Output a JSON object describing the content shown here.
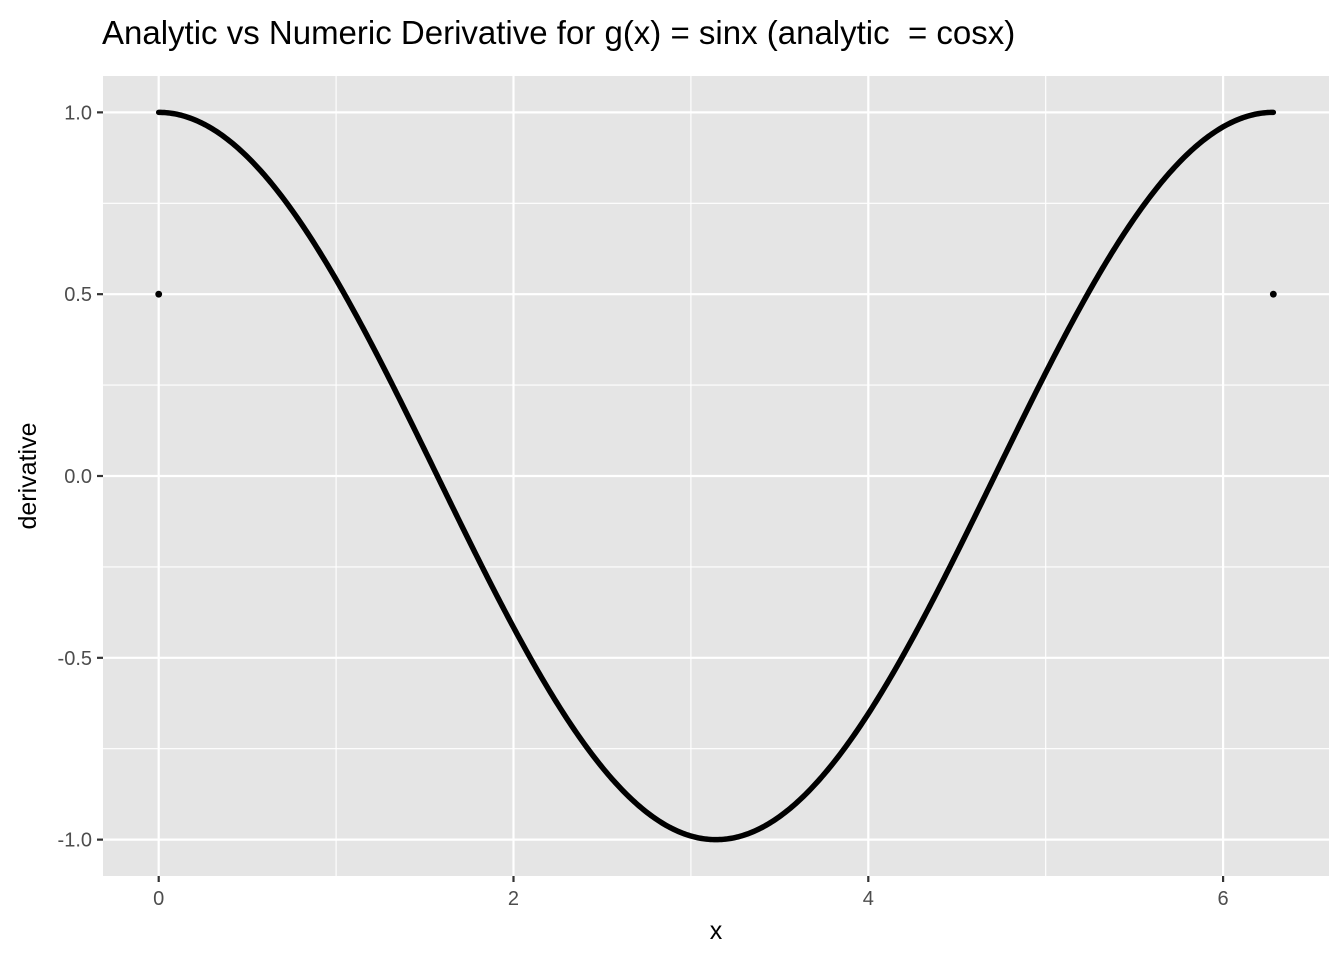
{
  "chart_data": {
    "type": "line",
    "title": "Analytic vs Numeric Derivative for g(x) = sinx (analytic  = cosx)",
    "xlabel": "x",
    "ylabel": "derivative",
    "xlim": [
      -0.314,
      6.597
    ],
    "ylim": [
      -1.1,
      1.1
    ],
    "x_ticks": [
      0,
      2,
      4,
      6
    ],
    "x_tick_labels": [
      "0",
      "2",
      "4",
      "6"
    ],
    "y_ticks": [
      -1.0,
      -0.5,
      0.0,
      0.5,
      1.0
    ],
    "y_tick_labels": [
      "-1.0",
      "-0.5",
      "0.0",
      "0.5",
      "1.0"
    ],
    "grid": true,
    "background": "#e5e5e5",
    "grid_color": "#ffffff",
    "series": [
      {
        "function": "cos",
        "x_range": [
          0,
          6.2832
        ],
        "color": "#000000"
      }
    ],
    "points": [
      {
        "x": 0,
        "y": 0.5
      },
      {
        "x": 6.2832,
        "y": 0.5
      }
    ]
  }
}
